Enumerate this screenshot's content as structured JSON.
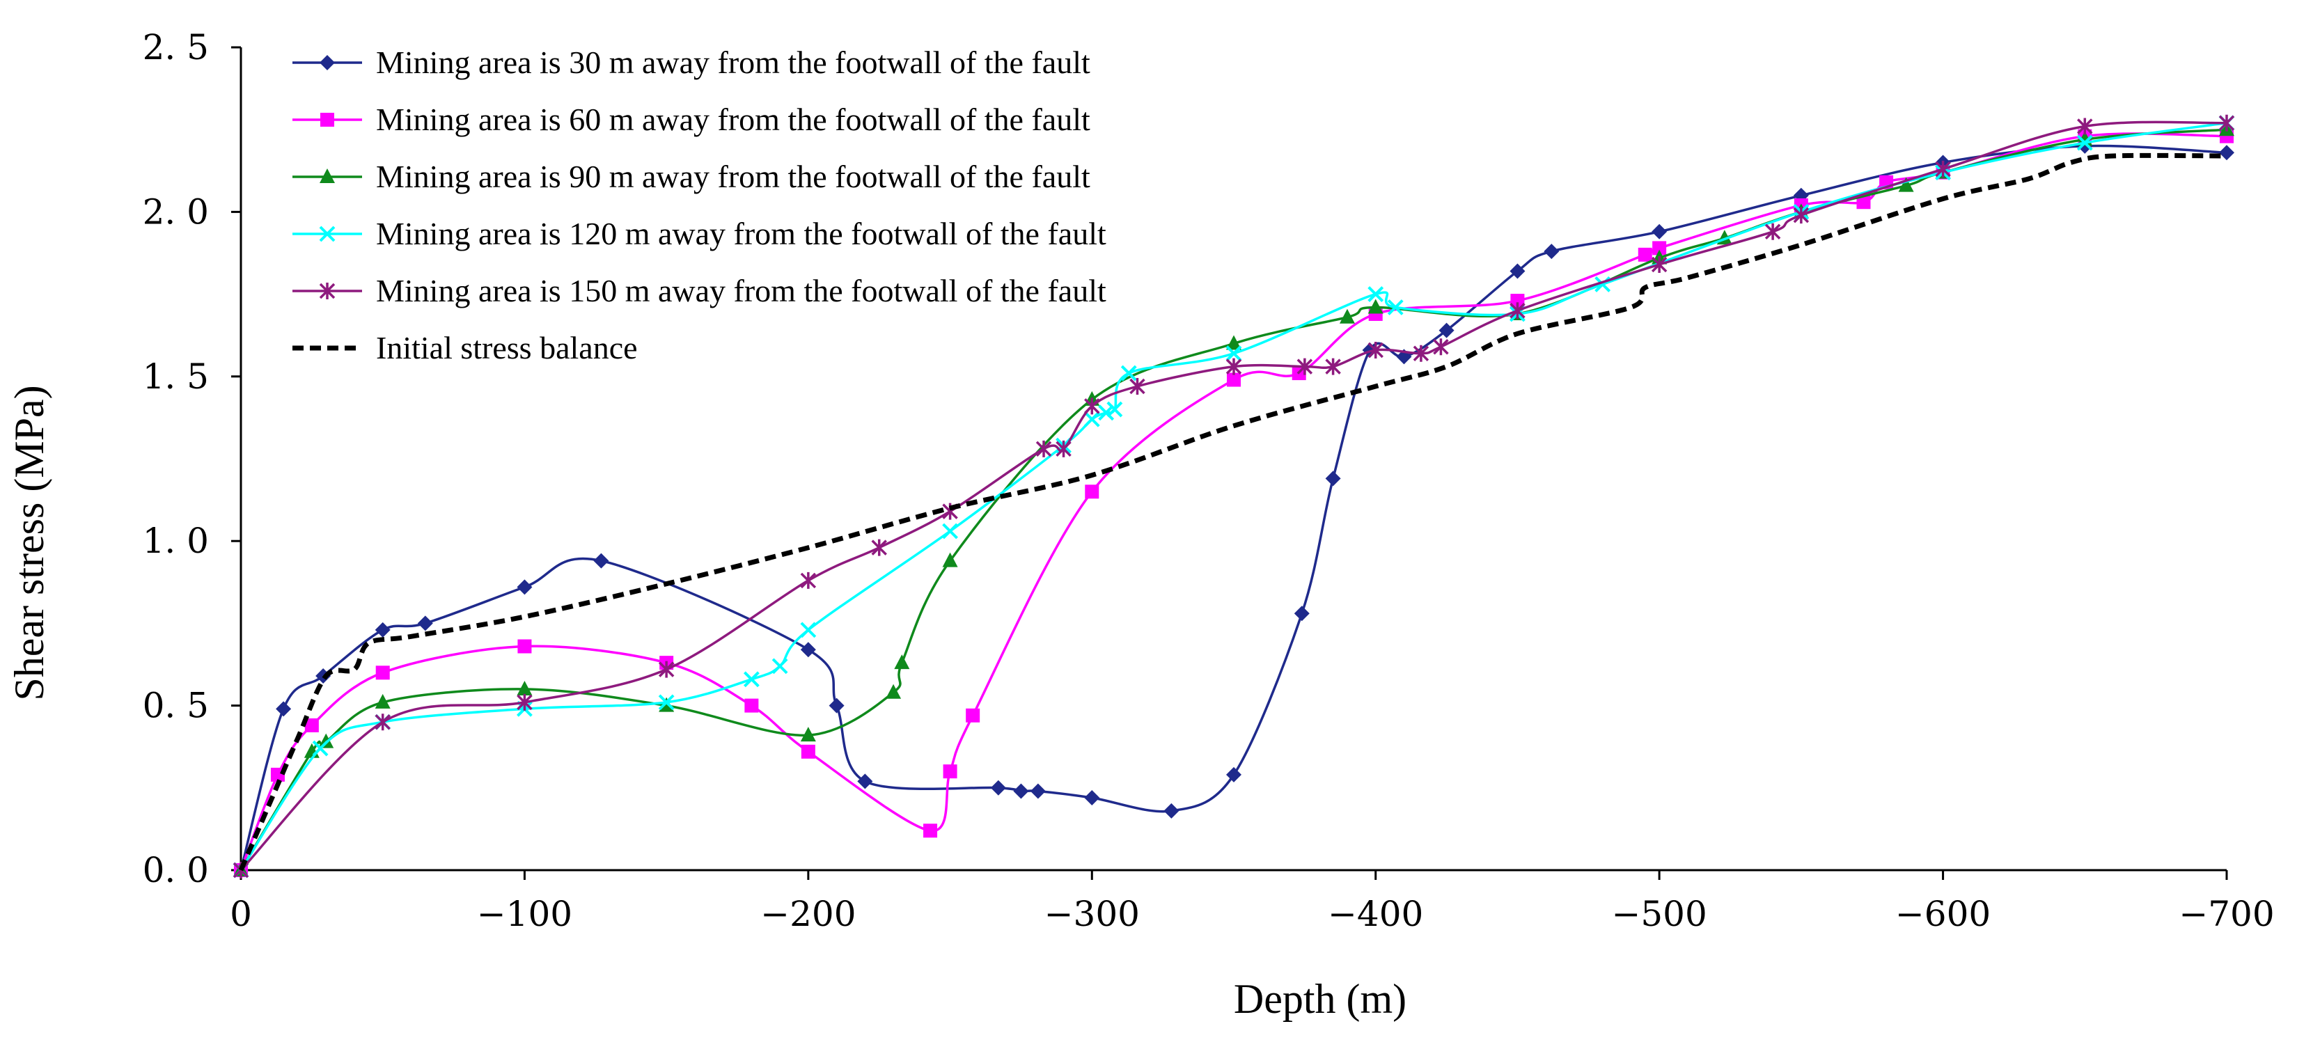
{
  "chart_data": {
    "type": "line",
    "title": "",
    "xlabel": "Depth (m)",
    "ylabel": "Shear stress (MPa)",
    "xlim": [
      0,
      -700
    ],
    "ylim": [
      0,
      2.5
    ],
    "x_ticks": [
      {
        "value": 0,
        "label": "0"
      },
      {
        "value": -100,
        "label": "−100"
      },
      {
        "value": -200,
        "label": "−200"
      },
      {
        "value": -300,
        "label": "−300"
      },
      {
        "value": -400,
        "label": "−400"
      },
      {
        "value": -500,
        "label": "−500"
      },
      {
        "value": -600,
        "label": "−600"
      },
      {
        "value": -700,
        "label": "−700"
      }
    ],
    "y_ticks": [
      {
        "value": 0,
        "label": "0. 0"
      },
      {
        "value": 0.5,
        "label": "0. 5"
      },
      {
        "value": 1.0,
        "label": "1. 0"
      },
      {
        "value": 1.5,
        "label": "1. 5"
      },
      {
        "value": 2.0,
        "label": "2. 0"
      },
      {
        "value": 2.5,
        "label": "2. 5"
      }
    ],
    "grid": false,
    "legend_position": "top-left",
    "series": [
      {
        "name": "Mining area is 30 m away from the footwall of the fault",
        "color": "#1f2a8c",
        "marker": "diamond",
        "dash": false,
        "points": [
          [
            0,
            0
          ],
          [
            -15,
            0.49
          ],
          [
            -29,
            0.59
          ],
          [
            -50,
            0.73
          ],
          [
            -65,
            0.75
          ],
          [
            -100,
            0.86
          ],
          [
            -127,
            0.94
          ],
          [
            -200,
            0.67
          ],
          [
            -210,
            0.5
          ],
          [
            -220,
            0.27
          ],
          [
            -267,
            0.25
          ],
          [
            -275,
            0.24
          ],
          [
            -281,
            0.24
          ],
          [
            -300,
            0.22
          ],
          [
            -328,
            0.18
          ],
          [
            -350,
            0.29
          ],
          [
            -374,
            0.78
          ],
          [
            -385,
            1.19
          ],
          [
            -398,
            1.58
          ],
          [
            -410,
            1.56
          ],
          [
            -425,
            1.64
          ],
          [
            -450,
            1.82
          ],
          [
            -462,
            1.88
          ],
          [
            -500,
            1.94
          ],
          [
            -550,
            2.05
          ],
          [
            -600,
            2.15
          ],
          [
            -650,
            2.2
          ],
          [
            -700,
            2.18
          ]
        ]
      },
      {
        "name": "Mining area is 60 m away from the footwall of the fault",
        "color": "#ff00ff",
        "marker": "square",
        "dash": false,
        "points": [
          [
            0,
            0
          ],
          [
            -13,
            0.29
          ],
          [
            -25,
            0.44
          ],
          [
            -50,
            0.6
          ],
          [
            -100,
            0.68
          ],
          [
            -150,
            0.63
          ],
          [
            -180,
            0.5
          ],
          [
            -200,
            0.36
          ],
          [
            -243,
            0.12
          ],
          [
            -250,
            0.3
          ],
          [
            -258,
            0.47
          ],
          [
            -300,
            1.15
          ],
          [
            -350,
            1.49
          ],
          [
            -373,
            1.51
          ],
          [
            -400,
            1.69
          ],
          [
            -450,
            1.73
          ],
          [
            -495,
            1.87
          ],
          [
            -500,
            1.89
          ],
          [
            -550,
            2.02
          ],
          [
            -572,
            2.03
          ],
          [
            -580,
            2.09
          ],
          [
            -600,
            2.12
          ],
          [
            -650,
            2.23
          ],
          [
            -700,
            2.23
          ]
        ]
      },
      {
        "name": "Mining area is 90 m away from the footwall of the fault",
        "color": "#0f8a1c",
        "marker": "triangle",
        "dash": false,
        "points": [
          [
            0,
            0
          ],
          [
            -25,
            0.36
          ],
          [
            -30,
            0.39
          ],
          [
            -50,
            0.51
          ],
          [
            -100,
            0.55
          ],
          [
            -150,
            0.5
          ],
          [
            -200,
            0.41
          ],
          [
            -230,
            0.54
          ],
          [
            -233,
            0.63
          ],
          [
            -250,
            0.94
          ],
          [
            -300,
            1.43
          ],
          [
            -350,
            1.6
          ],
          [
            -390,
            1.68
          ],
          [
            -400,
            1.71
          ],
          [
            -450,
            1.69
          ],
          [
            -500,
            1.86
          ],
          [
            -523,
            1.92
          ],
          [
            -550,
            2.0
          ],
          [
            -587,
            2.08
          ],
          [
            -600,
            2.12
          ],
          [
            -650,
            2.22
          ],
          [
            -700,
            2.25
          ]
        ]
      },
      {
        "name": "Mining area is 120 m away from the footwall of the fault",
        "color": "#00ffff",
        "marker": "x",
        "dash": false,
        "points": [
          [
            0,
            0
          ],
          [
            -28,
            0.37
          ],
          [
            -50,
            0.45
          ],
          [
            -100,
            0.49
          ],
          [
            -150,
            0.51
          ],
          [
            -180,
            0.58
          ],
          [
            -190,
            0.62
          ],
          [
            -200,
            0.73
          ],
          [
            -250,
            1.03
          ],
          [
            -290,
            1.29
          ],
          [
            -300,
            1.37
          ],
          [
            -305,
            1.39
          ],
          [
            -308,
            1.4
          ],
          [
            -313,
            1.51
          ],
          [
            -350,
            1.57
          ],
          [
            -400,
            1.75
          ],
          [
            -407,
            1.71
          ],
          [
            -450,
            1.69
          ],
          [
            -480,
            1.78
          ],
          [
            -550,
            2.0
          ],
          [
            -600,
            2.12
          ],
          [
            -650,
            2.21
          ],
          [
            -700,
            2.27
          ]
        ]
      },
      {
        "name": "Mining area is 150 m away from the footwall of the fault",
        "color": "#8e1a7e",
        "marker": "star",
        "dash": false,
        "points": [
          [
            0,
            0
          ],
          [
            -50,
            0.45
          ],
          [
            -100,
            0.51
          ],
          [
            -150,
            0.61
          ],
          [
            -200,
            0.88
          ],
          [
            -225,
            0.98
          ],
          [
            -250,
            1.09
          ],
          [
            -283,
            1.28
          ],
          [
            -290,
            1.28
          ],
          [
            -300,
            1.41
          ],
          [
            -316,
            1.47
          ],
          [
            -350,
            1.53
          ],
          [
            -375,
            1.53
          ],
          [
            -385,
            1.53
          ],
          [
            -400,
            1.58
          ],
          [
            -416,
            1.57
          ],
          [
            -423,
            1.59
          ],
          [
            -450,
            1.7
          ],
          [
            -500,
            1.84
          ],
          [
            -540,
            1.94
          ],
          [
            -550,
            1.99
          ],
          [
            -600,
            2.13
          ],
          [
            -650,
            2.26
          ],
          [
            -700,
            2.27
          ]
        ]
      },
      {
        "name": "Initial stress balance",
        "color": "#000000",
        "marker": "none",
        "dash": true,
        "points": [
          [
            0,
            0
          ],
          [
            -10,
            0.2
          ],
          [
            -20,
            0.4
          ],
          [
            -30,
            0.59
          ],
          [
            -40,
            0.61
          ],
          [
            -45,
            0.69
          ],
          [
            -60,
            0.71
          ],
          [
            -100,
            0.77
          ],
          [
            -150,
            0.87
          ],
          [
            -200,
            0.98
          ],
          [
            -250,
            1.1
          ],
          [
            -300,
            1.2
          ],
          [
            -350,
            1.35
          ],
          [
            -400,
            1.47
          ],
          [
            -425,
            1.53
          ],
          [
            -450,
            1.63
          ],
          [
            -490,
            1.71
          ],
          [
            -495,
            1.77
          ],
          [
            -510,
            1.8
          ],
          [
            -550,
            1.9
          ],
          [
            -600,
            2.04
          ],
          [
            -630,
            2.1
          ],
          [
            -645,
            2.15
          ],
          [
            -660,
            2.17
          ],
          [
            -700,
            2.17
          ]
        ]
      }
    ]
  }
}
